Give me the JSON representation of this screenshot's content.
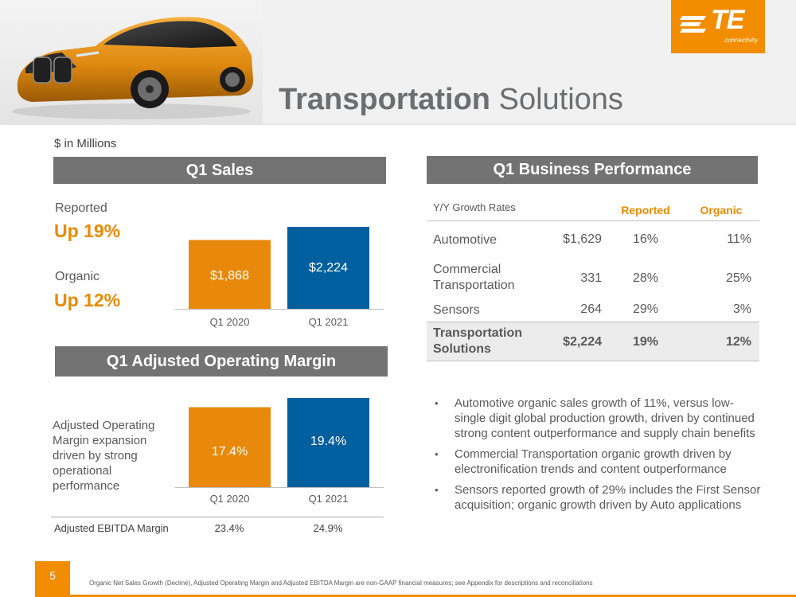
{
  "header": {
    "title_bold": "Transportation",
    "title_regular": "Solutions",
    "logo_text": "TE",
    "logo_subtext": "connectivity"
  },
  "units_note": "$ in Millions",
  "q1_sales": {
    "heading": "Q1 Sales",
    "reported_label": "Reported",
    "reported_value": "Up 19%",
    "organic_label": "Organic",
    "organic_value": "Up 12%",
    "bar_labels": [
      "$1,868",
      "$2,224"
    ]
  },
  "q1_margin": {
    "heading": "Q1 Adjusted Operating Margin",
    "description": "Adjusted Operating Margin expansion driven by strong operational performance",
    "bar_labels": [
      "17.4%",
      "19.4%"
    ],
    "ebitda_label": "Adjusted EBITDA Margin",
    "ebitda_values": [
      "23.4%",
      "24.9%"
    ]
  },
  "chart_data": [
    {
      "type": "bar",
      "categories": [
        "Q1 2020",
        "Q1 2021"
      ],
      "values": [
        1868,
        2224
      ],
      "value_labels": [
        "$1,868",
        "$2,224"
      ],
      "ylim": [
        0,
        2224
      ],
      "colors": [
        "#e8890c",
        "#005f9e"
      ],
      "grid": false,
      "legend": "none"
    },
    {
      "type": "bar",
      "categories": [
        "Q1 2020",
        "Q1 2021"
      ],
      "values": [
        17.4,
        19.4
      ],
      "value_labels": [
        "17.4%",
        "19.4%"
      ],
      "ylim": [
        0,
        19.4
      ],
      "colors": [
        "#e8890c",
        "#005f9e"
      ],
      "grid": false,
      "legend": "none"
    }
  ],
  "performance": {
    "heading": "Q1 Business Performance",
    "col_growth": "Y/Y Growth Rates",
    "col_reported": "Reported",
    "col_organic": "Organic",
    "rows": [
      {
        "name": "Automotive",
        "sales": "$1,629",
        "reported": "16%",
        "organic": "11%"
      },
      {
        "name": "Commercial Transportation",
        "sales": "331",
        "reported": "28%",
        "organic": "25%"
      },
      {
        "name": "Sensors",
        "sales": "264",
        "reported": "29%",
        "organic": "3%"
      }
    ],
    "total": {
      "name": "Transportation Solutions",
      "sales": "$2,224",
      "reported": "19%",
      "organic": "12%"
    }
  },
  "bullets": [
    "Automotive organic sales growth of 11%, versus low-single digit global production growth, driven by continued strong content outperformance and supply chain benefits",
    "Commercial Transportation organic growth driven by electronification trends and content outperformance",
    "Sensors reported growth of 29% includes the First Sensor acquisition; organic growth driven by Auto applications"
  ],
  "bullet_marker": "•",
  "footer": {
    "page_number": "5",
    "footnote": "Organic Net Sales Growth (Decline), Adjusted Operating Margin and Adjusted EBITDA Margin are non-GAAP financial measures; see Appendix for descriptions and reconciliations"
  },
  "colors": {
    "accent_orange": "#f28d00",
    "bar_orange": "#e8890c",
    "bar_blue": "#005f9e",
    "section_gray": "#737373"
  },
  "icons": {
    "car_image": "car-illustration",
    "logo": "te-logo"
  }
}
